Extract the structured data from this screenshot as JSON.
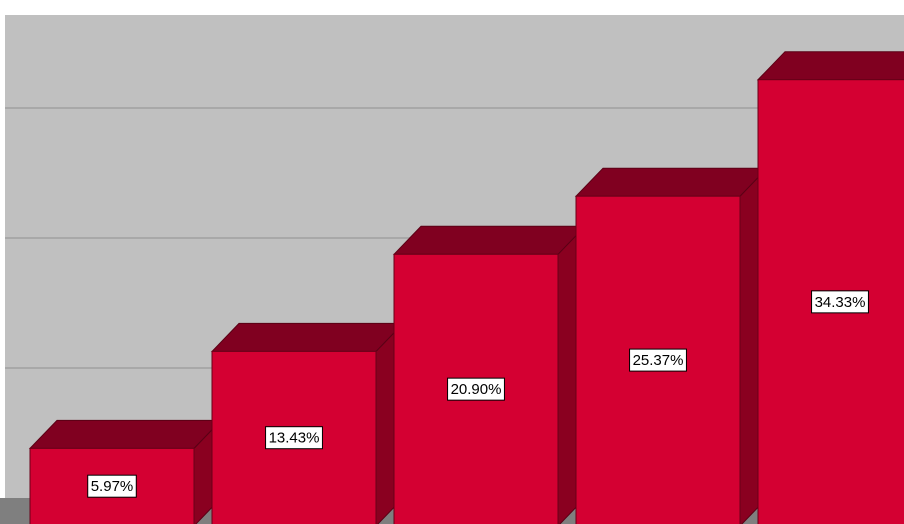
{
  "chart_data": {
    "type": "bar",
    "categories": [
      null,
      null,
      null,
      null,
      null
    ],
    "values": [
      5.97,
      13.43,
      20.9,
      25.37,
      34.33
    ],
    "value_labels": [
      "5.97%",
      "13.43%",
      "20.90%",
      "25.37%",
      "34.33%"
    ],
    "color": "#d40032",
    "ylim": [
      0,
      37
    ],
    "yticks": [
      10,
      20,
      30
    ],
    "grid": true
  }
}
